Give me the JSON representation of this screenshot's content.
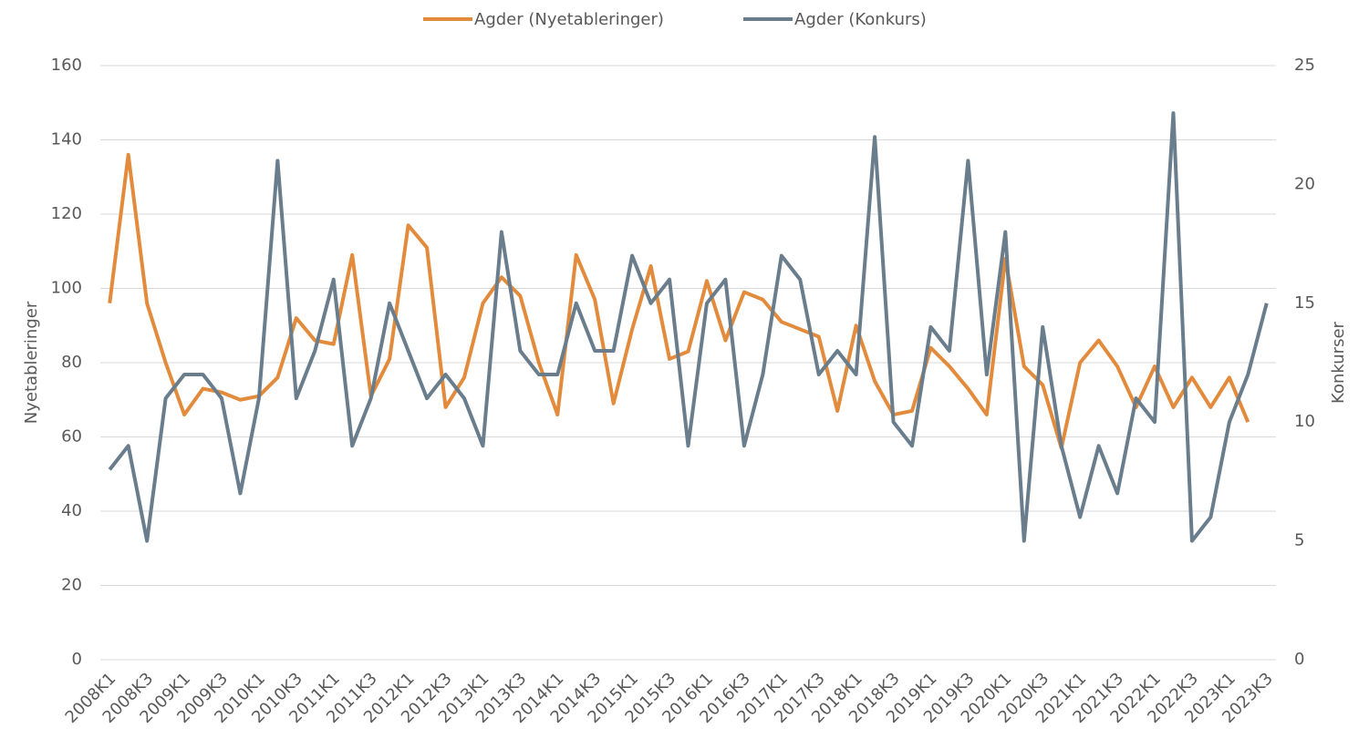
{
  "chart_data": {
    "type": "line",
    "categories": [
      "2008K1",
      null,
      "2008K3",
      null,
      "2009K1",
      null,
      "2009K3",
      null,
      "2010K1",
      null,
      "2010K3",
      null,
      "2011K1",
      null,
      "2011K3",
      null,
      "2012K1",
      null,
      "2012K3",
      null,
      "2013K1",
      null,
      "2013K3",
      null,
      "2014K1",
      null,
      "2014K3",
      null,
      "2015K1",
      null,
      "2015K3",
      null,
      "2016K1",
      null,
      "2016K3",
      null,
      "2017K1",
      null,
      "2017K3",
      null,
      "2018K1",
      null,
      "2018K3",
      null,
      "2019K1",
      null,
      "2019K3",
      null,
      "2020K1",
      null,
      "2020K3",
      null,
      "2021K1",
      null,
      "2021K3",
      null,
      "2022K1",
      null,
      "2022K3",
      null,
      "2023K1",
      null,
      "2023K3"
    ],
    "series": [
      {
        "name": "Agder (Nyetableringer)",
        "color": "#e38b3c",
        "axis": "y",
        "values": [
          96,
          136,
          96,
          80,
          66,
          73,
          72,
          70,
          71,
          76,
          92,
          86,
          85,
          109,
          71,
          81,
          117,
          111,
          68,
          76,
          96,
          103,
          98,
          80,
          66,
          109,
          97,
          69,
          89,
          106,
          81,
          83,
          102,
          86,
          99,
          97,
          91,
          89,
          87,
          67,
          90,
          75,
          66,
          67,
          84,
          79,
          73,
          66,
          108,
          79,
          74,
          57,
          80,
          86,
          79,
          68,
          79,
          68,
          76,
          68,
          76,
          64,
          null
        ]
      },
      {
        "name": "Agder (Konkurs)",
        "color": "#697d8c",
        "axis": "y2",
        "values": [
          8,
          9,
          5,
          11,
          12,
          12,
          11,
          7,
          11,
          21,
          11,
          13,
          16,
          9,
          11,
          15,
          13,
          11,
          12,
          11,
          9,
          18,
          13,
          12,
          12,
          15,
          13,
          13,
          17,
          15,
          16,
          9,
          15,
          16,
          9,
          12,
          17,
          16,
          12,
          13,
          12,
          22,
          10,
          9,
          14,
          13,
          21,
          12,
          18,
          5,
          14,
          9,
          6,
          9,
          7,
          11,
          10,
          23,
          5,
          6,
          10,
          12,
          15
        ]
      }
    ],
    "ylabel": "Nyetableringer",
    "y2label": "Konkurser",
    "ylim": [
      0,
      160
    ],
    "yticks": [
      0,
      20,
      40,
      60,
      80,
      100,
      120,
      140,
      160
    ],
    "y2lim": [
      0,
      25
    ],
    "y2ticks": [
      0,
      5,
      10,
      15,
      20,
      25
    ],
    "grid": true,
    "legend": "top"
  }
}
